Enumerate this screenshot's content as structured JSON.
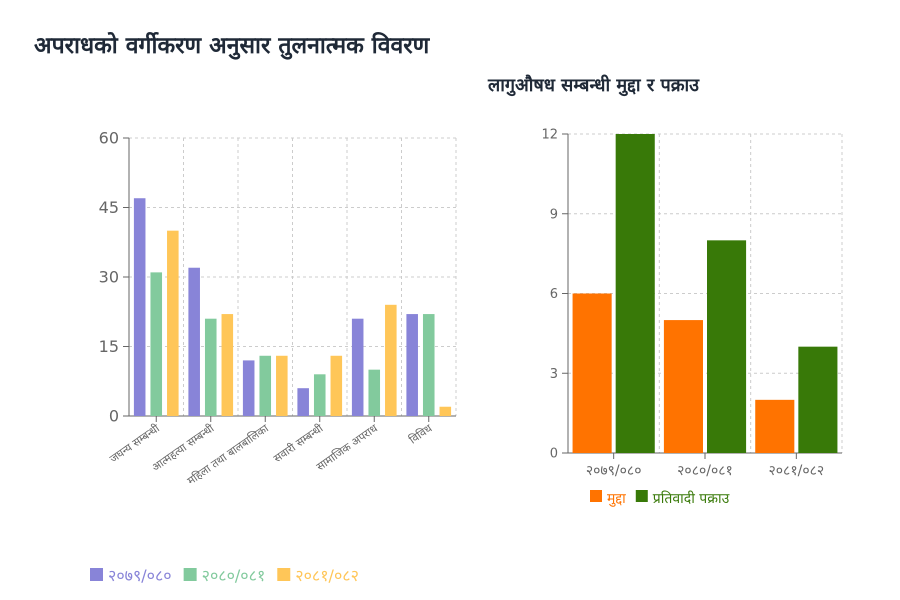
{
  "titles": {
    "left": "अपराधको वर्गीकरण अनुसार तुलनात्मक विवरण",
    "right": "लागुऔषध सम्बन्धी मुद्दा र पक्राउ"
  },
  "chart_data": [
    {
      "type": "bar",
      "title": "अपराधको वर्गीकरण अनुसार तुलनात्मक विवरण",
      "categories": [
        "जघन्य सम्बन्धी",
        "आत्महत्या सम्बन्धी",
        "महिला तथा बालबालिका",
        "सवारी सम्बन्धी",
        "सामाजिक अपराध",
        "विविध"
      ],
      "series": [
        {
          "name": "२०७९/०८०",
          "color": "#8884d8",
          "values": [
            47,
            32,
            12,
            6,
            21,
            22
          ]
        },
        {
          "name": "२०८०/०८१",
          "color": "#82ca9d",
          "values": [
            31,
            21,
            13,
            9,
            10,
            22
          ]
        },
        {
          "name": "२०८१/०८२",
          "color": "#ffc658",
          "values": [
            40,
            22,
            13,
            13,
            24,
            2
          ]
        }
      ],
      "yticks": [
        "0",
        "15",
        "30",
        "45",
        "60"
      ],
      "ylim": [
        0,
        60
      ],
      "grid": true,
      "legend": "bottom-left"
    },
    {
      "type": "bar",
      "title": "लागुऔषध सम्बन्धी मुद्दा र पक्राउ",
      "categories": [
        "२०७९/०८०",
        "२०८०/०८१",
        "२०८१/०८२"
      ],
      "series": [
        {
          "name": "मुद्दा",
          "color": "#ff7300",
          "values": [
            6,
            5,
            2
          ]
        },
        {
          "name": "प्रतिवादी पक्राउ",
          "color": "#387908",
          "values": [
            12,
            8,
            4
          ]
        }
      ],
      "yticks": [
        "0",
        "3",
        "6",
        "9",
        "12"
      ],
      "ylim": [
        0,
        12
      ],
      "grid": true,
      "legend": "bottom"
    }
  ]
}
